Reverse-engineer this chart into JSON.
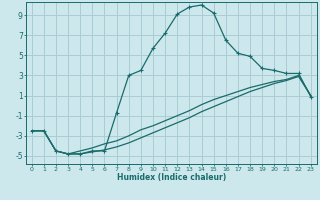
{
  "xlabel": "Humidex (Indice chaleur)",
  "bg_color": "#cce8ec",
  "grid_color": "#aaccd4",
  "line_color": "#1a6b6b",
  "xlim": [
    -0.5,
    23.5
  ],
  "ylim": [
    -5.8,
    10.3
  ],
  "xticks": [
    0,
    1,
    2,
    3,
    4,
    5,
    6,
    7,
    8,
    9,
    10,
    11,
    12,
    13,
    14,
    15,
    16,
    17,
    18,
    19,
    20,
    21,
    22,
    23
  ],
  "yticks": [
    -5,
    -3,
    -1,
    1,
    3,
    5,
    7,
    9
  ],
  "series1_x": [
    0,
    1,
    2,
    3,
    4,
    5,
    6,
    7,
    8,
    9,
    10,
    11,
    12,
    13,
    14,
    15,
    16,
    17,
    18,
    19,
    20,
    21,
    22,
    23
  ],
  "series1_y": [
    -2.5,
    -2.5,
    -4.5,
    -4.8,
    -4.8,
    -4.5,
    -4.5,
    -0.7,
    3.0,
    3.5,
    5.7,
    7.2,
    9.1,
    9.8,
    10.0,
    9.2,
    6.5,
    5.2,
    4.9,
    3.7,
    3.5,
    3.2,
    3.2,
    0.9
  ],
  "series2_x": [
    0,
    1,
    2,
    3,
    4,
    5,
    6,
    7,
    8,
    9,
    10,
    11,
    12,
    13,
    14,
    15,
    16,
    17,
    18,
    19,
    20,
    21,
    22,
    23
  ],
  "series2_y": [
    -2.5,
    -2.5,
    -4.5,
    -4.8,
    -4.5,
    -4.2,
    -3.8,
    -3.5,
    -3.0,
    -2.4,
    -2.0,
    -1.5,
    -1.0,
    -0.5,
    0.1,
    0.6,
    1.0,
    1.4,
    1.8,
    2.1,
    2.4,
    2.6,
    3.0,
    1.0
  ],
  "series3_x": [
    0,
    1,
    2,
    3,
    4,
    5,
    6,
    7,
    8,
    9,
    10,
    11,
    12,
    13,
    14,
    15,
    16,
    17,
    18,
    19,
    20,
    21,
    22,
    23
  ],
  "series3_y": [
    -2.5,
    -2.5,
    -4.5,
    -4.8,
    -4.8,
    -4.6,
    -4.4,
    -4.1,
    -3.7,
    -3.2,
    -2.7,
    -2.2,
    -1.7,
    -1.2,
    -0.6,
    -0.1,
    0.4,
    0.9,
    1.4,
    1.8,
    2.2,
    2.5,
    2.9,
    1.0
  ]
}
